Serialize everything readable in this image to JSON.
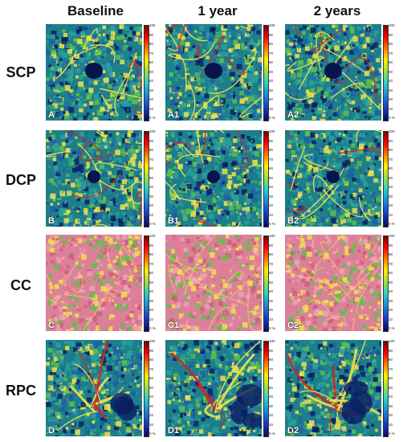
{
  "columns": [
    "Baseline",
    "1 year",
    "2 years"
  ],
  "rows": [
    "SCP",
    "DCP",
    "CC",
    "RPC"
  ],
  "panel_labels": [
    [
      "A",
      "A1",
      "A2"
    ],
    [
      "B",
      "B1",
      "B2"
    ],
    [
      "C",
      "C1",
      "C2"
    ],
    [
      "D",
      "D1",
      "D2"
    ]
  ],
  "colorbar_ticks": [
    "100",
    "90",
    "80",
    "70",
    "60",
    "50",
    "40",
    "30",
    "20",
    "10",
    "0 %"
  ],
  "colors": {
    "deep_blue": "#0b1e63",
    "teal": "#2c9f9a",
    "green": "#5fbf4a",
    "yellow": "#f2e24a",
    "pink": "#e47a98",
    "red": "#c42a2a"
  }
}
